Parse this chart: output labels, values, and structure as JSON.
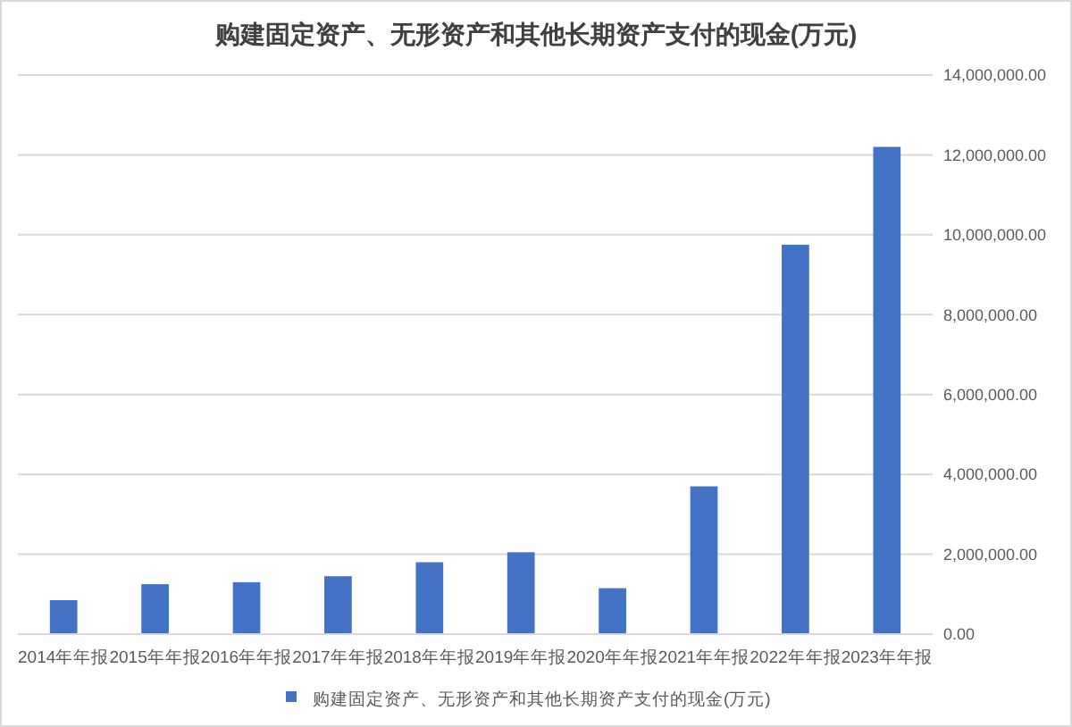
{
  "chart_data": {
    "type": "bar",
    "title": "购建固定资产、无形资产和其他长期资产支付的现金(万元)",
    "categories": [
      "2014年年报",
      "2015年年报",
      "2016年年报",
      "2017年年报",
      "2018年年报",
      "2019年年报",
      "2020年年报",
      "2021年年报",
      "2022年年报",
      "2023年年报"
    ],
    "series": [
      {
        "name": "购建固定资产、无形资产和其他长期资产支付的现金(万元)",
        "color": "#4472c4",
        "values": [
          850000,
          1250000,
          1300000,
          1450000,
          1800000,
          2050000,
          1150000,
          3700000,
          9750000,
          12200000
        ]
      }
    ],
    "ylim": [
      0,
      14000000
    ],
    "yticks": [
      {
        "value": 0,
        "label": "0.00"
      },
      {
        "value": 2000000,
        "label": "2,000,000.00"
      },
      {
        "value": 4000000,
        "label": "4,000,000.00"
      },
      {
        "value": 6000000,
        "label": "6,000,000.00"
      },
      {
        "value": 8000000,
        "label": "8,000,000.00"
      },
      {
        "value": 10000000,
        "label": "10,000,000.00"
      },
      {
        "value": 12000000,
        "label": "12,000,000.00"
      },
      {
        "value": 14000000,
        "label": "14,000,000.00"
      }
    ],
    "grid": "y",
    "legend": "bottom"
  }
}
